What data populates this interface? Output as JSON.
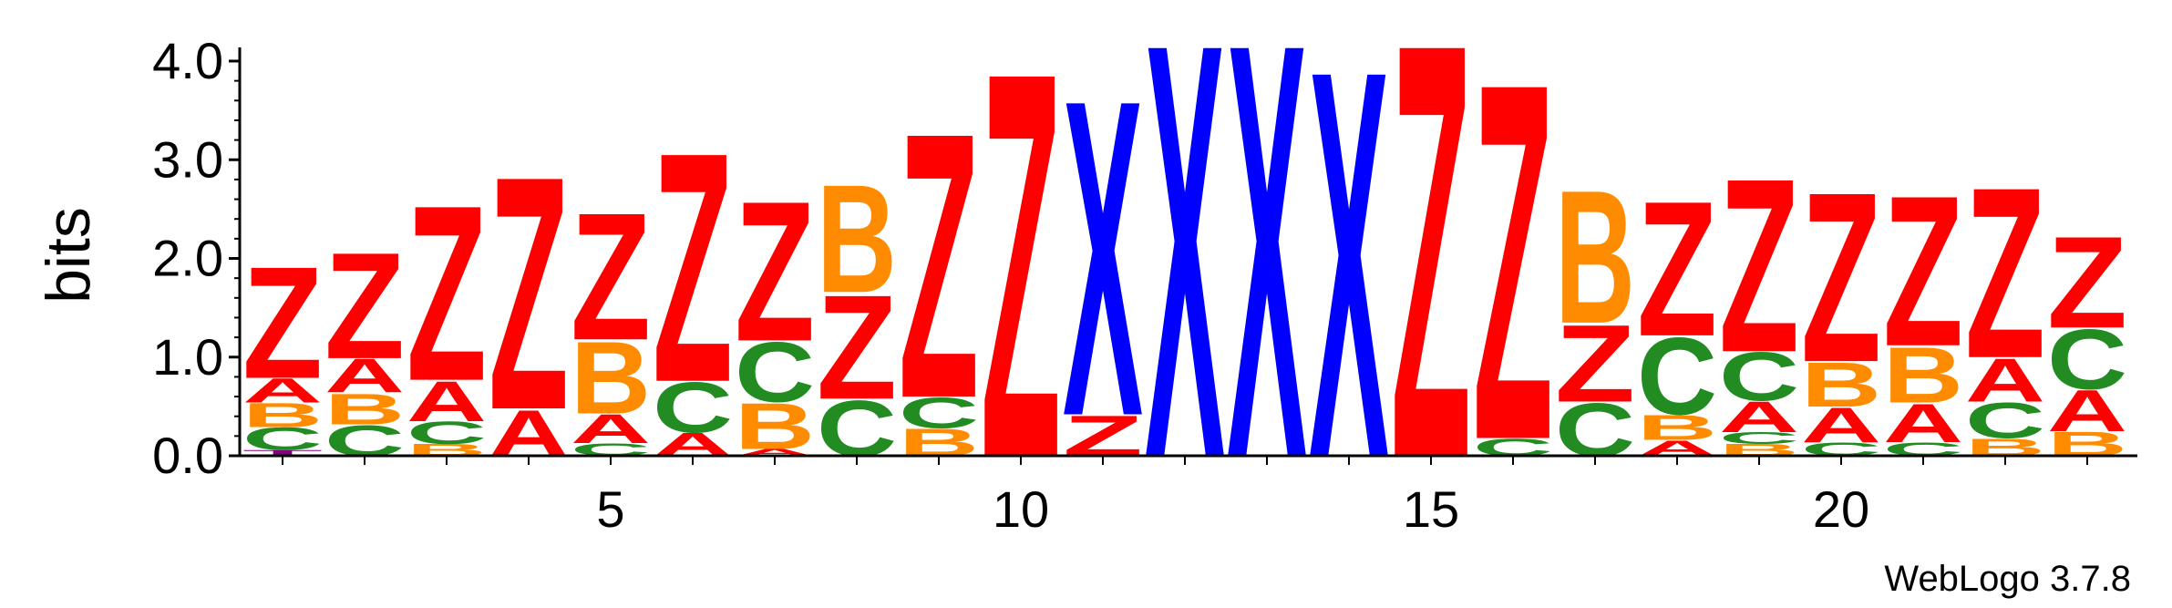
{
  "chart_data": {
    "type": "sequence_logo",
    "ylabel": "bits",
    "ylim": [
      0,
      4.0
    ],
    "ytick_labels": [
      "0.0",
      "1.0",
      "2.0",
      "3.0",
      "4.0"
    ],
    "xtick_labels": [
      "5",
      "10",
      "15",
      "20"
    ],
    "xtick_positions": [
      5,
      10,
      15,
      20
    ],
    "footer": "WebLogo 3.7.8",
    "colors": {
      "Z": "#ff0000",
      "A": "#ff0000",
      "X": "#0000ff",
      "B": "#ff8c00",
      "C": "#228b22",
      "T": "#800080"
    },
    "positions": [
      {
        "pos": 1,
        "stack": [
          [
            "T",
            0.06
          ],
          [
            "C",
            0.23
          ],
          [
            "B",
            0.25
          ],
          [
            "A",
            0.25
          ],
          [
            "Z",
            1.16
          ]
        ]
      },
      {
        "pos": 2,
        "stack": [
          [
            "C",
            0.32
          ],
          [
            "B",
            0.32
          ],
          [
            "A",
            0.35
          ],
          [
            "Z",
            1.1
          ]
        ]
      },
      {
        "pos": 3,
        "stack": [
          [
            "B",
            0.12
          ],
          [
            "C",
            0.23
          ],
          [
            "A",
            0.42
          ],
          [
            "Z",
            1.82
          ]
        ]
      },
      {
        "pos": 4,
        "stack": [
          [
            "A",
            0.48
          ],
          [
            "Z",
            2.42
          ]
        ]
      },
      {
        "pos": 5,
        "stack": [
          [
            "C",
            0.13
          ],
          [
            "A",
            0.3
          ],
          [
            "B",
            0.75
          ],
          [
            "Z",
            1.32
          ]
        ]
      },
      {
        "pos": 6,
        "stack": [
          [
            "A",
            0.24
          ],
          [
            "C",
            0.52
          ],
          [
            "Z",
            2.38
          ]
        ]
      },
      {
        "pos": 7,
        "stack": [
          [
            "A",
            0.07
          ],
          [
            "B",
            0.48
          ],
          [
            "C",
            0.62
          ],
          [
            "Z",
            1.45
          ]
        ]
      },
      {
        "pos": 8,
        "stack": [
          [
            "C",
            0.58
          ],
          [
            "Z",
            1.08
          ],
          [
            "B",
            1.12
          ]
        ]
      },
      {
        "pos": 9,
        "stack": [
          [
            "B",
            0.28
          ],
          [
            "C",
            0.32
          ],
          [
            "Z",
            2.75
          ]
        ]
      },
      {
        "pos": 10,
        "stack": [
          [
            "Z",
            4.0
          ]
        ]
      },
      {
        "pos": 11,
        "stack": [
          [
            "Z",
            0.42
          ],
          [
            "X",
            3.28
          ]
        ]
      },
      {
        "pos": 12,
        "stack": [
          [
            "X",
            4.3
          ]
        ]
      },
      {
        "pos": 13,
        "stack": [
          [
            "X",
            4.3
          ]
        ]
      },
      {
        "pos": 14,
        "stack": [
          [
            "X",
            4.02
          ]
        ]
      },
      {
        "pos": 15,
        "stack": [
          [
            "Z",
            4.3
          ]
        ]
      },
      {
        "pos": 16,
        "stack": [
          [
            "C",
            0.18
          ],
          [
            "Z",
            3.7
          ]
        ]
      },
      {
        "pos": 17,
        "stack": [
          [
            "C",
            0.55
          ],
          [
            "Z",
            0.8
          ],
          [
            "B",
            1.38
          ]
        ]
      },
      {
        "pos": 18,
        "stack": [
          [
            "A",
            0.16
          ],
          [
            "B",
            0.26
          ],
          [
            "C",
            0.8
          ],
          [
            "Z",
            1.4
          ]
        ]
      },
      {
        "pos": 19,
        "stack": [
          [
            "B",
            0.12
          ],
          [
            "C",
            0.12
          ],
          [
            "A",
            0.32
          ],
          [
            "C",
            0.5
          ],
          [
            "Z",
            1.8
          ]
        ]
      },
      {
        "pos": 20,
        "stack": [
          [
            "C",
            0.14
          ],
          [
            "A",
            0.36
          ],
          [
            "B",
            0.46
          ],
          [
            "Z",
            1.76
          ]
        ]
      },
      {
        "pos": 21,
        "stack": [
          [
            "C",
            0.14
          ],
          [
            "A",
            0.4
          ],
          [
            "B",
            0.58
          ],
          [
            "Z",
            1.56
          ]
        ]
      },
      {
        "pos": 22,
        "stack": [
          [
            "B",
            0.18
          ],
          [
            "C",
            0.37
          ],
          [
            "A",
            0.45
          ],
          [
            "Z",
            1.77
          ]
        ]
      },
      {
        "pos": 23,
        "stack": [
          [
            "B",
            0.25
          ],
          [
            "A",
            0.43
          ],
          [
            "C",
            0.62
          ],
          [
            "Z",
            0.95
          ]
        ]
      }
    ]
  }
}
